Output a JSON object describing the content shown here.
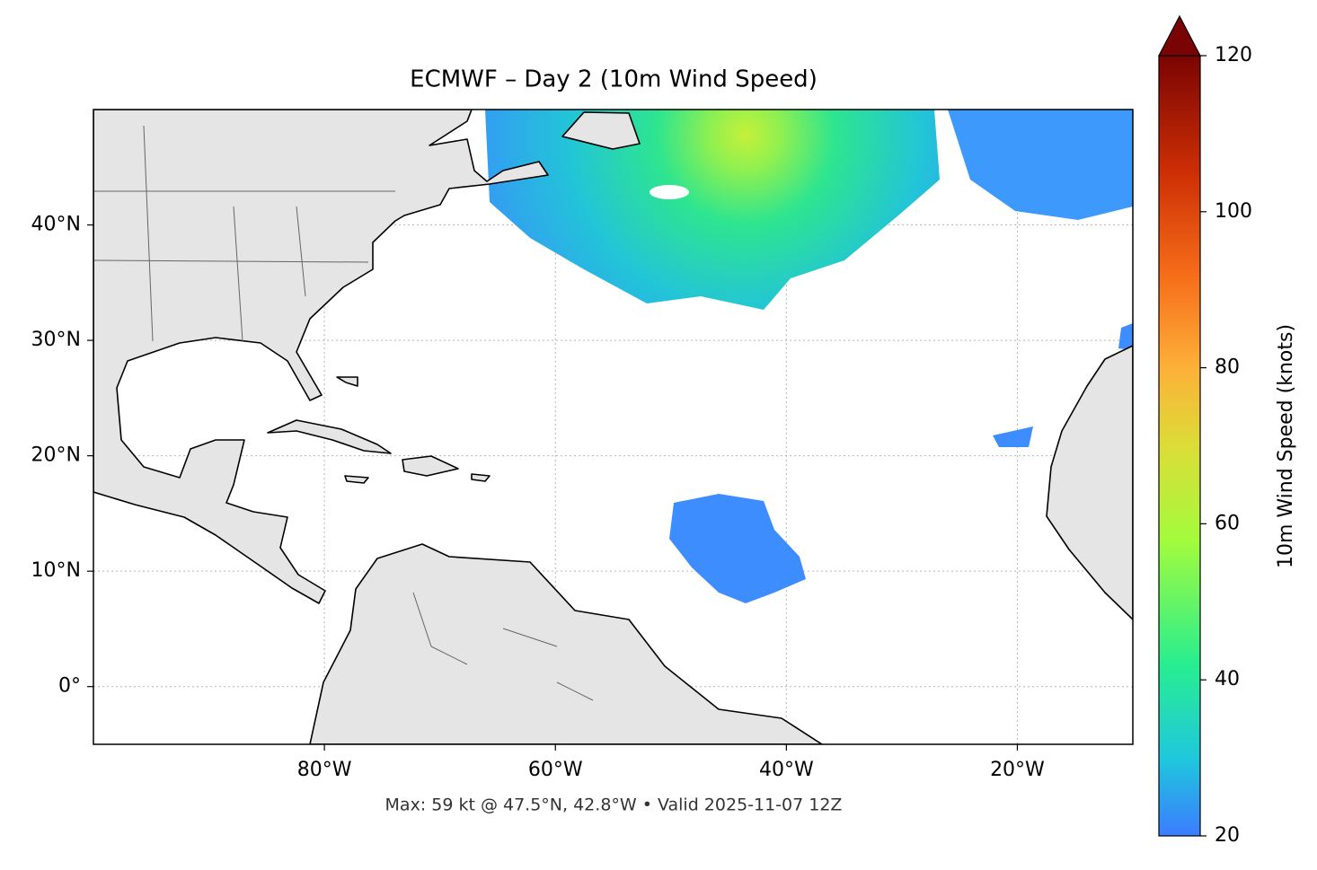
{
  "title": "ECMWF – Day 2 (10m Wind Speed)",
  "footer": "Max: 59 kt @ 47.5°N, 42.8°W • Valid 2025-11-07 12Z",
  "map": {
    "xlim": [
      -100,
      -10
    ],
    "ylim": [
      -5,
      50
    ],
    "lon_ticks": [
      {
        "value": -80,
        "label": "80°W"
      },
      {
        "value": -60,
        "label": "60°W"
      },
      {
        "value": -40,
        "label": "40°W"
      },
      {
        "value": -20,
        "label": "20°W"
      }
    ],
    "lat_ticks": [
      {
        "value": 0,
        "label": "0°"
      },
      {
        "value": 10,
        "label": "10°N"
      },
      {
        "value": 20,
        "label": "20°N"
      },
      {
        "value": 30,
        "label": "30°N"
      },
      {
        "value": 40,
        "label": "40°N"
      }
    ],
    "grid": true
  },
  "colorbar": {
    "label": "10m Wind Speed (knots)",
    "lim": [
      20,
      120
    ],
    "ticks": [
      20,
      40,
      60,
      80,
      100,
      120
    ]
  }
}
